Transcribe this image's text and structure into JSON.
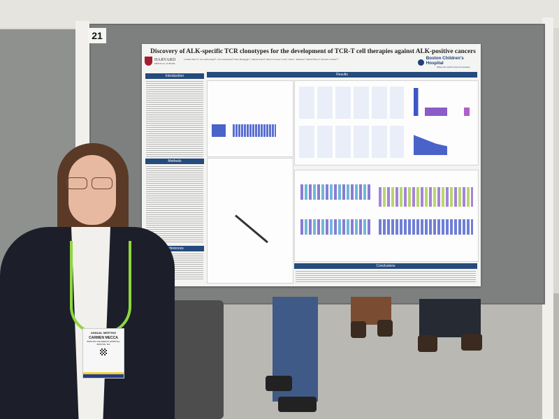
{
  "scene": {
    "board_number": "21",
    "colors": {
      "poster_header_blue": "#254a7c",
      "lanyard_green": "#8fd640",
      "jacket": "#1c1f2a",
      "board_fabric": "#7e807f"
    }
  },
  "poster": {
    "title": "Discovery of ALK-specific TCR clonotypes for the development of TCR-T cell therapies against ALK-positive cancers",
    "authors": "Carmen Mecca¹, Ava Amorrtegui¹, Luca Alessandri¹, Elisa Bergaggio¹, Simone Parisi¹, Marcos Soares Costa², Ellis L. Reinherz², Rafael Blasco¹, Roberto Chiarle¹·³",
    "institution_left": "HARVARD",
    "institution_left_sub": "MEDICAL SCHOOL",
    "institution_right": "Boston Children's Hospital",
    "institution_right_tagline": "Where the world comes for answers",
    "sections": {
      "introduction": "Introduction",
      "methods": "Methods",
      "references": "References",
      "results": "Results",
      "conclusions": "Conclusions"
    }
  },
  "badge": {
    "event": "ANNUAL MEETING",
    "name": "CARMEN MECCA",
    "affiliation": "BOSTON CHILDREN'S HOSPITAL",
    "location": "BOSTON, MA"
  }
}
